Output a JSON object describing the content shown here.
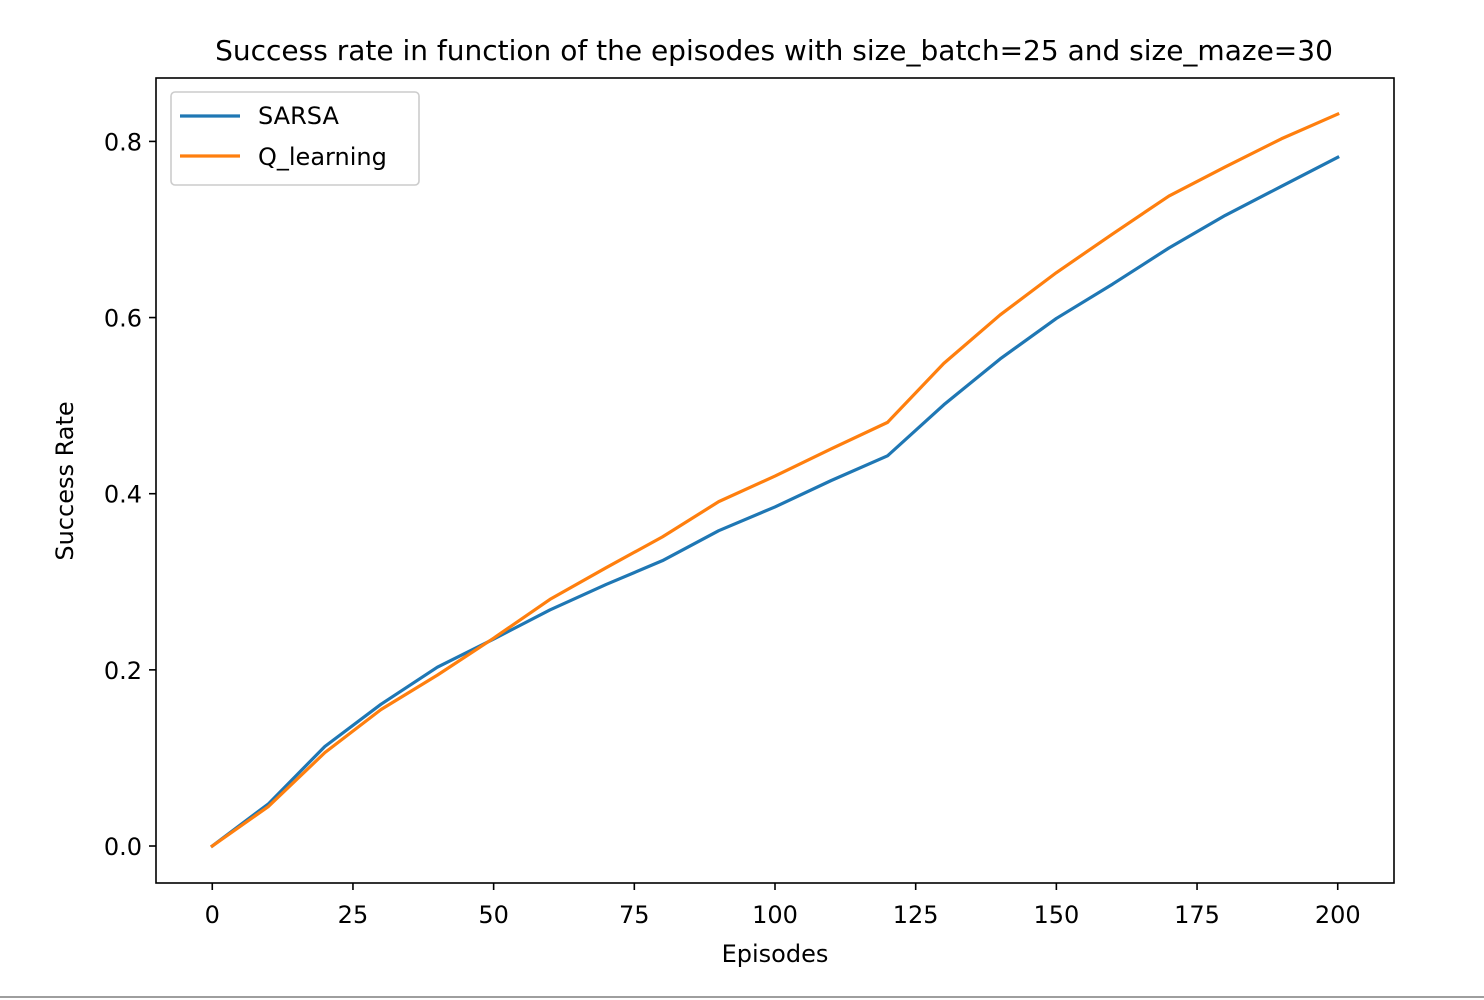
{
  "chart_data": {
    "type": "line",
    "title": "Success rate in function of the episodes with size_batch=25 and size_maze=30",
    "xlabel": "Episodes",
    "ylabel": "Success Rate",
    "xlim": [
      -10,
      210
    ],
    "ylim": [
      -0.042,
      0.872
    ],
    "xticks": [
      0,
      25,
      50,
      75,
      100,
      125,
      150,
      175,
      200
    ],
    "xtick_labels": [
      "0",
      "25",
      "50",
      "75",
      "100",
      "125",
      "150",
      "175",
      "200"
    ],
    "yticks": [
      0.0,
      0.2,
      0.4,
      0.6,
      0.8
    ],
    "ytick_labels": [
      "0.0",
      "0.2",
      "0.4",
      "0.6",
      "0.8"
    ],
    "grid": false,
    "legend_position": "top-left",
    "x": [
      0,
      10,
      20,
      30,
      40,
      50,
      60,
      70,
      80,
      90,
      100,
      110,
      120,
      130,
      140,
      150,
      160,
      170,
      180,
      190,
      200
    ],
    "series": [
      {
        "name": "SARSA",
        "color": "#1f77b4",
        "values": [
          0.0,
          0.048,
          0.113,
          0.161,
          0.203,
          0.235,
          0.268,
          0.297,
          0.324,
          0.358,
          0.385,
          0.415,
          0.443,
          0.501,
          0.553,
          0.599,
          0.638,
          0.679,
          0.716,
          0.749,
          0.782
        ]
      },
      {
        "name": "Q_learning",
        "color": "#ff7f0e",
        "values": [
          0.0,
          0.045,
          0.106,
          0.155,
          0.194,
          0.236,
          0.28,
          0.316,
          0.351,
          0.391,
          0.42,
          0.451,
          0.481,
          0.548,
          0.603,
          0.651,
          0.695,
          0.738,
          0.771,
          0.803,
          0.831
        ]
      }
    ]
  }
}
